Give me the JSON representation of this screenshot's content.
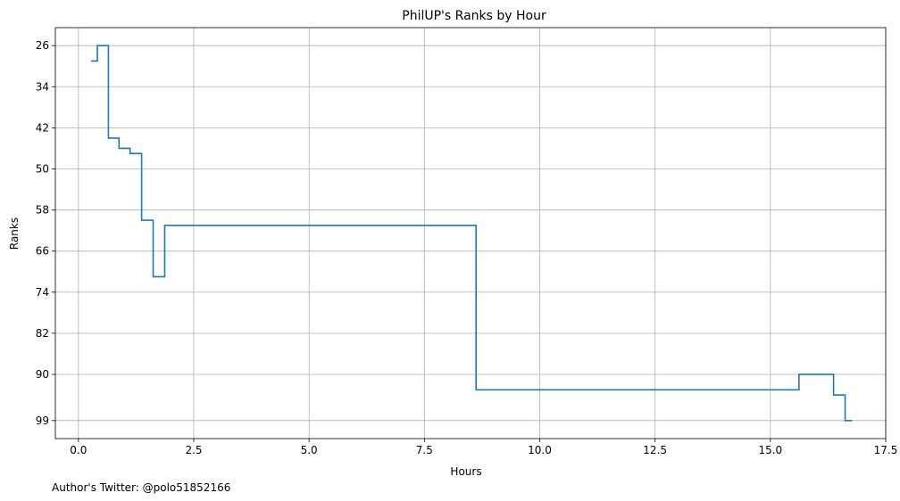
{
  "chart_data": {
    "type": "line",
    "step": "post",
    "title": "PhilUP's Ranks by Hour",
    "xlabel": "Hours",
    "ylabel": "Ranks",
    "xlim": [
      -0.5,
      17.5
    ],
    "ylim": [
      102.5,
      22.5
    ],
    "y_inverted": true,
    "xticks": [
      0.0,
      2.5,
      5.0,
      7.5,
      10.0,
      12.5,
      15.0,
      17.5
    ],
    "xtick_labels": [
      "0.0",
      "2.5",
      "5.0",
      "7.5",
      "10.0",
      "12.5",
      "15.0",
      "17.5"
    ],
    "yticks": [
      26,
      34,
      42,
      50,
      58,
      66,
      74,
      82,
      90,
      99
    ],
    "ytick_labels": [
      "26",
      "34",
      "42",
      "50",
      "58",
      "66",
      "74",
      "82",
      "90",
      "99"
    ],
    "grid": true,
    "line_color": "#1f77b4",
    "series": [
      {
        "x": [
          0.27,
          0.41,
          0.65,
          0.88,
          1.12,
          1.37,
          1.62,
          1.87,
          8.62,
          15.62,
          16.37,
          16.62,
          16.77
        ],
        "y": [
          29,
          26,
          44,
          46,
          47,
          60,
          71,
          61,
          93,
          90,
          94,
          99,
          99
        ]
      }
    ]
  },
  "footer_note": "Author's Twitter: @polo51852166"
}
